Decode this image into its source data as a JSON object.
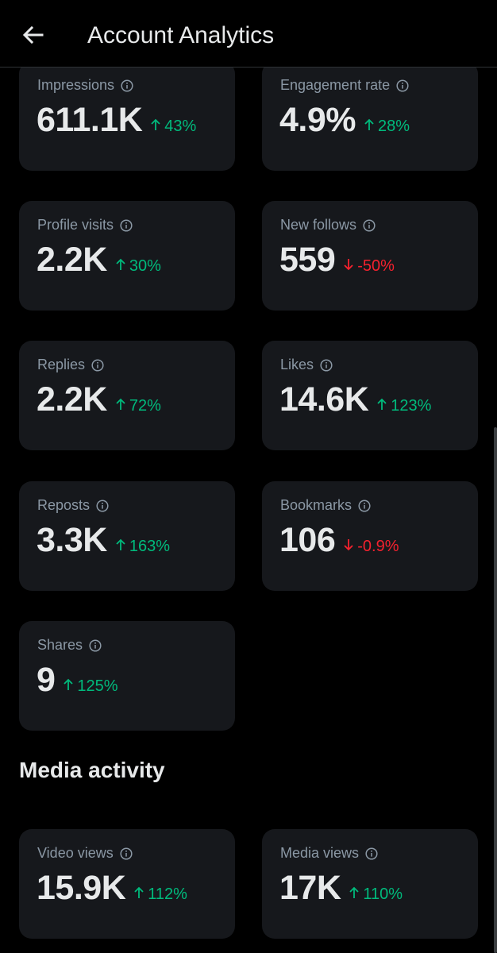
{
  "header": {
    "title": "Account Analytics"
  },
  "colors": {
    "background": "#000000",
    "card": "#16181c",
    "positive": "#00ba7c",
    "negative": "#f4212e",
    "muted": "#8b98a5"
  },
  "metrics": [
    {
      "label": "Impressions",
      "value": "611.1K",
      "change": "43%",
      "direction": "up"
    },
    {
      "label": "Engagement rate",
      "value": "4.9%",
      "change": "28%",
      "direction": "up"
    },
    {
      "label": "Profile visits",
      "value": "2.2K",
      "change": "30%",
      "direction": "up"
    },
    {
      "label": "New follows",
      "value": "559",
      "change": "-50%",
      "direction": "down"
    },
    {
      "label": "Replies",
      "value": "2.2K",
      "change": "72%",
      "direction": "up"
    },
    {
      "label": "Likes",
      "value": "14.6K",
      "change": "123%",
      "direction": "up"
    },
    {
      "label": "Reposts",
      "value": "3.3K",
      "change": "163%",
      "direction": "up"
    },
    {
      "label": "Bookmarks",
      "value": "106",
      "change": "-0.9%",
      "direction": "down"
    },
    {
      "label": "Shares",
      "value": "9",
      "change": "125%",
      "direction": "up"
    }
  ],
  "media_section": {
    "title": "Media activity",
    "metrics": [
      {
        "label": "Video views",
        "value": "15.9K",
        "change": "112%",
        "direction": "up"
      },
      {
        "label": "Media views",
        "value": "17K",
        "change": "110%",
        "direction": "up"
      }
    ]
  }
}
